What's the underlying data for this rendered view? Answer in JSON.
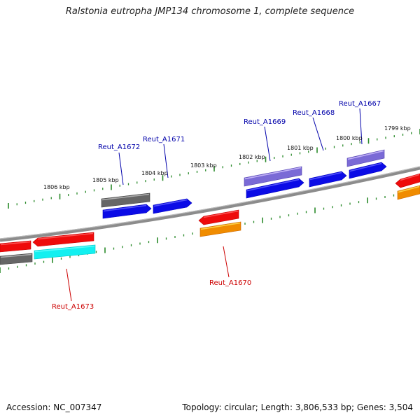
{
  "title": "Ralstonia eutropha JMP134 chromosome 1, complete sequence",
  "footer": {
    "accession": "Accession: NC_007347",
    "summary": "Topology: circular; Length: 3,806,533 bp; Genes: 3,504"
  },
  "colors": {
    "backbone": "#8c8c8c",
    "tick": "#2a8a2a",
    "label_forward": "#0000aa",
    "label_reverse": "#cc0000",
    "blue": "#0b0be6",
    "purple": "#7a6ad6",
    "grey": "#666666",
    "red": "#ee0b0b",
    "orange": "#f08c00",
    "cyan": "#12f0f0"
  },
  "scale_labels": [
    "1806 kbp",
    "1805 kbp",
    "1804 kbp",
    "1803 kbp",
    "1802 kbp",
    "1801 kbp",
    "1800 kbp",
    "1799 kbp"
  ],
  "gene_labels": [
    {
      "text": "Reut_A1672",
      "strand": "forward"
    },
    {
      "text": "Reut_A1671",
      "strand": "forward"
    },
    {
      "text": "Reut_A1669",
      "strand": "forward"
    },
    {
      "text": "Reut_A1668",
      "strand": "forward"
    },
    {
      "text": "Reut_A1667",
      "strand": "forward"
    },
    {
      "text": "Reut_A1670",
      "strand": "reverse"
    },
    {
      "text": "Reut_A1673",
      "strand": "reverse"
    }
  ]
}
